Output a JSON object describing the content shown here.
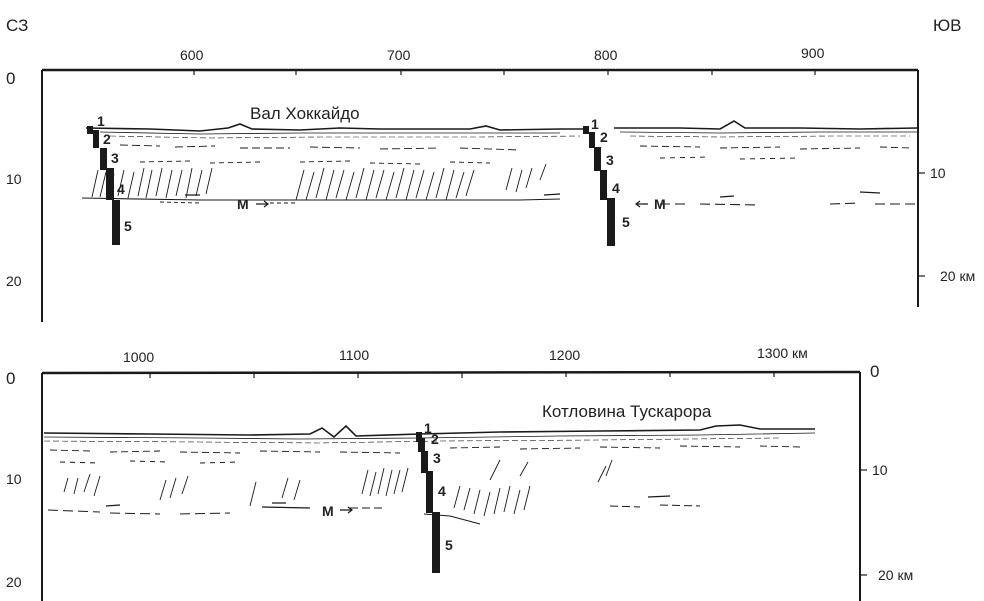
{
  "orientation": {
    "left": "СЗ",
    "right": "ЮВ"
  },
  "profile_top": {
    "x_ticks": [
      "600",
      "700",
      "800",
      "900"
    ],
    "depth_left": [
      "0",
      "10",
      "20"
    ],
    "depth_right": [
      "10",
      "20 км"
    ],
    "feature_label": "Вал Хоккайдо",
    "moho_label": "М",
    "column_a_numbers": [
      "1",
      "2",
      "3",
      "4",
      "5"
    ],
    "column_b_numbers": [
      "1",
      "2",
      "3",
      "4",
      "5"
    ]
  },
  "profile_bottom": {
    "x_ticks": [
      "1000",
      "1100",
      "1200",
      "1300 км"
    ],
    "depth_left": [
      "0",
      "10",
      "20"
    ],
    "depth_right": [
      "0",
      "10",
      "20 км"
    ],
    "feature_label": "Котловина Тускарора",
    "moho_label": "М",
    "column_numbers": [
      "1",
      "2",
      "3",
      "4",
      "5"
    ]
  },
  "colors": {
    "ink": "#1a1a1a",
    "background": "#ffffff"
  }
}
